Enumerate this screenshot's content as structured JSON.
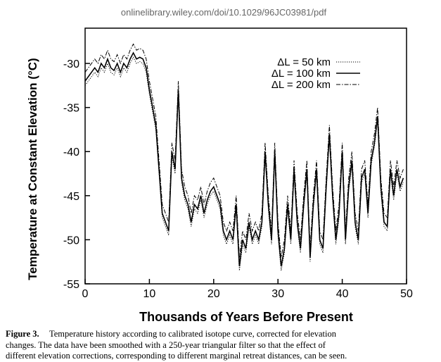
{
  "source_url": "onlinelibrary.wiley.com/doi/10.1029/96JC03981/pdf",
  "chart_data": {
    "type": "line",
    "xlabel": "Thousands of Years Before Present",
    "ylabel": "Temperature at Constant Elevation (°C)",
    "xlim": [
      0,
      50
    ],
    "ylim": [
      -55,
      -26
    ],
    "xticks": [
      0,
      10,
      20,
      30,
      40,
      50
    ],
    "yticks": [
      -30,
      -35,
      -40,
      -45,
      -50,
      -55
    ],
    "legend": "upper right",
    "x": [
      0,
      0.5,
      1,
      1.5,
      2,
      2.5,
      3,
      3.5,
      4,
      4.5,
      5,
      5.5,
      6,
      6.5,
      7,
      7.5,
      8,
      8.5,
      9,
      9.5,
      10,
      10.5,
      11,
      11.5,
      12,
      12.5,
      13,
      13.5,
      14,
      14.5,
      15,
      15.5,
      16,
      16.5,
      17,
      17.5,
      18,
      18.5,
      19,
      19.5,
      20,
      20.5,
      21,
      21.5,
      22,
      22.5,
      23,
      23.5,
      24,
      24.5,
      25,
      25.5,
      26,
      26.5,
      27,
      27.5,
      28,
      28.5,
      29,
      29.5,
      30,
      30.5,
      31,
      31.5,
      32,
      32.5,
      33,
      33.5,
      34,
      34.5,
      35,
      35.5,
      36,
      36.5,
      37,
      37.5,
      38,
      38.5,
      39,
      39.5,
      40,
      40.5,
      41,
      41.5,
      42,
      42.5,
      43,
      43.5,
      44,
      44.5,
      45,
      45.5,
      46,
      46.5,
      47,
      47.5,
      48,
      48.5,
      49,
      49.5
    ],
    "series": [
      {
        "name": "ΔL = 50 km",
        "color": "#000000",
        "dash": "dotted",
        "values": [
          -32.5,
          -32,
          -31.5,
          -31,
          -31.5,
          -30.5,
          -31,
          -30,
          -31,
          -31.3,
          -30.5,
          -31.5,
          -30.5,
          -31,
          -30,
          -29.3,
          -30,
          -29.8,
          -30,
          -31,
          -33.5,
          -35.5,
          -37.5,
          -42.5,
          -47.5,
          -48.5,
          -49.5,
          -40.5,
          -42.5,
          -33.5,
          -43.5,
          -45.5,
          -46.5,
          -48.5,
          -46.5,
          -47,
          -45.5,
          -47.5,
          -46,
          -45,
          -44.5,
          -45.5,
          -46.5,
          -49.5,
          -50.5,
          -49.5,
          -50.5,
          -46.5,
          -53.5,
          -50.5,
          -51.5,
          -48.5,
          -50.5,
          -49.5,
          -50.5,
          -48.5,
          -40.5,
          -46.5,
          -50.5,
          -40.5,
          -49.5,
          -53.5,
          -51.5,
          -46.5,
          -50.5,
          -42.5,
          -48.5,
          -51.5,
          -46.5,
          -42.5,
          -52.5,
          -46.5,
          -42.5,
          -50.5,
          -51.5,
          -44.5,
          -38.5,
          -45.5,
          -50.5,
          -47.5,
          -40.5,
          -50.5,
          -44.5,
          -41.5,
          -48.5,
          -50.5,
          -43.5,
          -42.5,
          -47.5,
          -41.5,
          -39.5,
          -36.5,
          -44.5,
          -48.5,
          -49,
          -42.5,
          -45.5,
          -42.5,
          -44.5,
          -43.5
        ]
      },
      {
        "name": "ΔL = 100 km",
        "color": "#000000",
        "dash": "solid",
        "values": [
          -32,
          -31.5,
          -31,
          -30.5,
          -31,
          -30,
          -30.5,
          -29.5,
          -30.5,
          -30.8,
          -30,
          -31,
          -30,
          -30.5,
          -29.5,
          -28.8,
          -29.5,
          -29.3,
          -29.5,
          -30.5,
          -33,
          -35,
          -37,
          -42,
          -47,
          -48,
          -49,
          -40,
          -42,
          -33,
          -43,
          -45,
          -46,
          -48,
          -46,
          -46.5,
          -45,
          -47,
          -45.5,
          -44.5,
          -44,
          -45,
          -46,
          -49,
          -50,
          -49,
          -50,
          -46,
          -53,
          -50,
          -51,
          -48,
          -50,
          -49,
          -50,
          -48,
          -40,
          -46,
          -50,
          -40,
          -49,
          -53,
          -51,
          -46,
          -50,
          -42,
          -48,
          -51,
          -46,
          -42,
          -52,
          -46,
          -42,
          -50,
          -51,
          -44,
          -38,
          -45,
          -50,
          -47,
          -40,
          -50,
          -44,
          -41,
          -48,
          -50,
          -43,
          -42,
          -47,
          -41,
          -39,
          -36,
          -44,
          -48,
          -48.5,
          -42,
          -45,
          -42,
          -44,
          -43
        ]
      },
      {
        "name": "ΔL = 200 km",
        "color": "#000000",
        "dash": "dashdot",
        "values": [
          -31,
          -30.5,
          -30,
          -29.5,
          -30,
          -29,
          -29.5,
          -28.5,
          -29.5,
          -29.8,
          -29,
          -30,
          -29,
          -29.5,
          -28.5,
          -27.8,
          -28.5,
          -28.3,
          -28.5,
          -29.5,
          -32,
          -34,
          -36,
          -41,
          -46,
          -47,
          -48,
          -39,
          -41,
          -32,
          -42,
          -44,
          -45,
          -47,
          -45,
          -45.5,
          -44,
          -46,
          -44.5,
          -43.5,
          -43,
          -44,
          -45,
          -48,
          -49,
          -48,
          -49,
          -45,
          -52,
          -49,
          -50,
          -47,
          -49,
          -48,
          -49,
          -47,
          -39,
          -45,
          -49,
          -39,
          -48,
          -52,
          -50,
          -45,
          -49,
          -41,
          -47,
          -50,
          -45,
          -41,
          -51,
          -45,
          -41,
          -49,
          -50,
          -43,
          -37,
          -44,
          -49,
          -46,
          -39,
          -49,
          -43,
          -40,
          -47,
          -49,
          -42,
          -41,
          -46,
          -40,
          -38,
          -35,
          -43,
          -47,
          -47.5,
          -41,
          -44,
          -41,
          -43,
          -42
        ]
      }
    ]
  },
  "caption": {
    "label": "Figure 3.",
    "lines": [
      "Temperature history according to calibrated isotope curve, corrected for elevation",
      "changes.  The data have been smoothed with a 250-year triangular filter so that the effect of",
      "different elevation corrections, corresponding to different marginal retreat distances, can be seen."
    ]
  }
}
